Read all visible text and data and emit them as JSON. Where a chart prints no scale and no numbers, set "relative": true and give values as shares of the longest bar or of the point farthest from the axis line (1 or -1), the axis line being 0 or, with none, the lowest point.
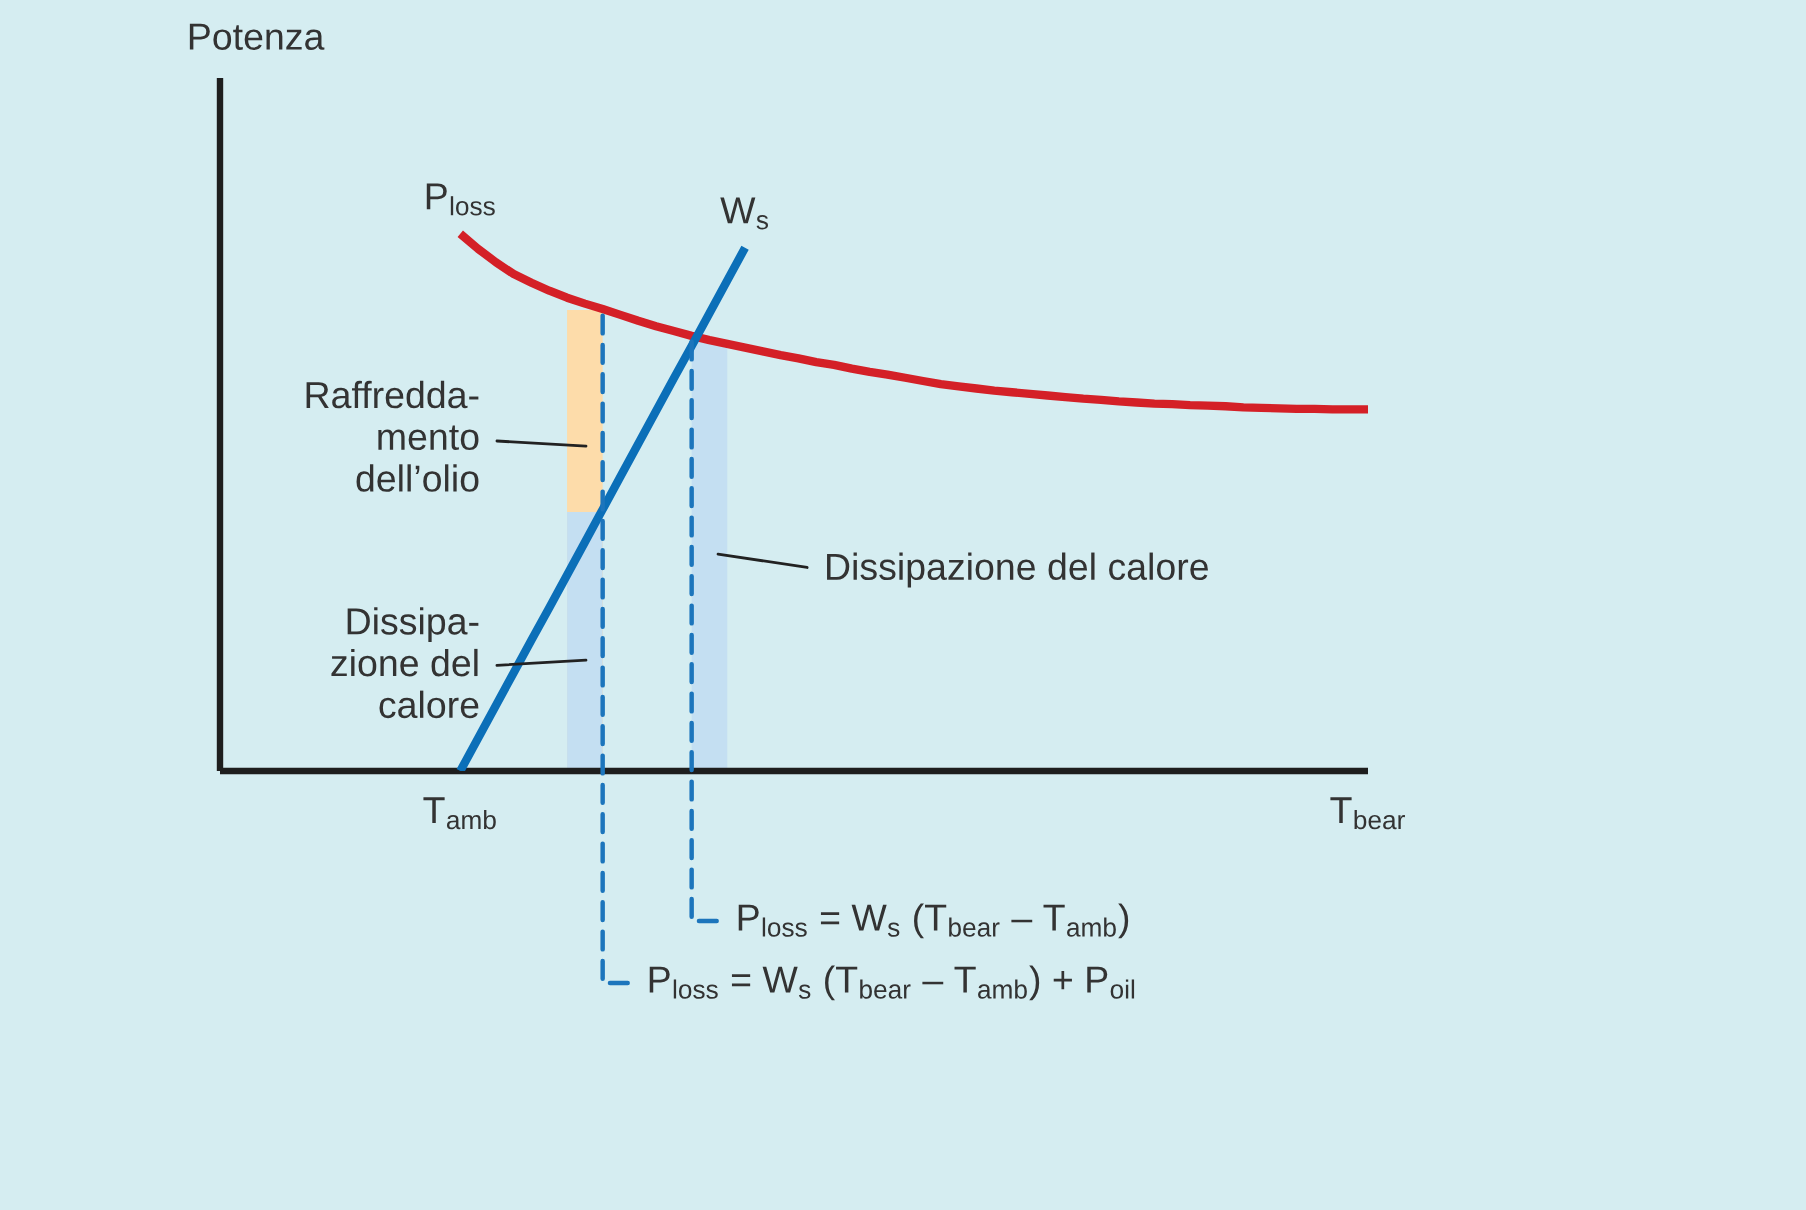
{
  "chart_data": {
    "type": "line",
    "relative": true,
    "grid": false,
    "tick_labels": "x",
    "ylabel": "Potenza",
    "categories": [
      null,
      null,
      null,
      null,
      null,
      null,
      null,
      null,
      null,
      null,
      null,
      null,
      null,
      "T$_{amb}$",
      null,
      null,
      null,
      null,
      null,
      null,
      null,
      null,
      null,
      null,
      null,
      null,
      null,
      null,
      null,
      null,
      null,
      null,
      null,
      null,
      null,
      null,
      null,
      null,
      null,
      null,
      null,
      null,
      null,
      null,
      null,
      null,
      null,
      null,
      null,
      null,
      null,
      null,
      null,
      null,
      null,
      null,
      null,
      null,
      null,
      null,
      null,
      null,
      null,
      null,
      "T$_{bear}$"
    ],
    "series": [
      {
        "type": "bar",
        "color": "#fddcaa",
        "values": [
          null,
          null,
          null,
          null,
          null,
          null,
          null,
          null,
          null,
          null,
          null,
          null,
          null,
          null,
          null,
          null,
          null,
          null,
          null,
          null,
          0.858,
          null,
          null,
          null,
          null,
          null,
          null,
          null,
          null,
          null,
          null,
          null,
          null,
          null,
          null,
          null,
          null,
          null,
          null,
          null,
          null,
          null,
          null,
          null,
          null,
          null,
          null,
          null,
          null,
          null,
          null,
          null,
          null,
          null,
          null,
          null,
          null,
          null,
          null,
          null,
          null,
          null,
          null,
          null,
          null
        ]
      },
      {
        "type": "bar",
        "color": "#c4dff2",
        "values": [
          null,
          null,
          null,
          null,
          null,
          null,
          null,
          null,
          null,
          null,
          null,
          null,
          null,
          null,
          null,
          null,
          null,
          null,
          null,
          null,
          0.482,
          null,
          null,
          null,
          null,
          null,
          null,
          0.803,
          null,
          null,
          null,
          null,
          null,
          null,
          null,
          null,
          null,
          null,
          null,
          null,
          null,
          null,
          null,
          null,
          null,
          null,
          null,
          null,
          null,
          null,
          null,
          null,
          null,
          null,
          null,
          null,
          null,
          null,
          null,
          null,
          null,
          null,
          null,
          null,
          null
        ]
      },
      {
        "name": "P$_{loss}$",
        "color": "#d42027",
        "values": [
          null,
          null,
          null,
          null,
          null,
          null,
          null,
          null,
          null,
          null,
          null,
          null,
          null,
          1.0,
          0.972,
          0.947,
          0.925,
          0.909,
          0.894,
          0.881,
          0.87,
          0.86,
          0.849,
          0.838,
          0.828,
          0.819,
          0.81,
          0.802,
          0.795,
          0.788,
          0.781,
          0.774,
          0.768,
          0.761,
          0.756,
          0.749,
          0.743,
          0.738,
          0.732,
          0.726,
          0.72,
          0.716,
          0.712,
          0.708,
          0.705,
          0.702,
          0.699,
          0.696,
          0.693,
          0.691,
          0.688,
          0.686,
          0.684,
          0.683,
          0.681,
          0.68,
          0.679,
          0.677,
          0.676,
          0.675,
          0.674,
          0.674,
          0.673,
          0.673,
          0.673
        ]
      },
      {
        "name": "W$_{s}$",
        "color": "#0b6fb8",
        "values": [
          null,
          null,
          null,
          null,
          null,
          null,
          null,
          null,
          null,
          null,
          null,
          null,
          null,
          0,
          0.061,
          0.122,
          0.183,
          0.244,
          0.304,
          0.365,
          0.426,
          0.487,
          0.548,
          0.609,
          0.67,
          0.731,
          0.791,
          0.852,
          0.913,
          0.974,
          null,
          null,
          null,
          null,
          null,
          null,
          null,
          null,
          null,
          null,
          null,
          null,
          null,
          null,
          null,
          null,
          null,
          null,
          null,
          null,
          null,
          null,
          null,
          null,
          null,
          null,
          null,
          null,
          null,
          null,
          null,
          null,
          null,
          null,
          null
        ]
      }
    ],
    "annotations": [
      "Raffredda-\nmento\ndell’olio",
      "Dissipa-\nzione del\ncalore",
      "Dissipazione del calore",
      "P$_{loss}$ = W$_{s}$ (T$_{bear}$ – T$_{amb}$)",
      "P$_{loss}$ = W$_{s}$ (T$_{bear}$ – T$_{amb}$) + P$_{oil}$"
    ]
  }
}
